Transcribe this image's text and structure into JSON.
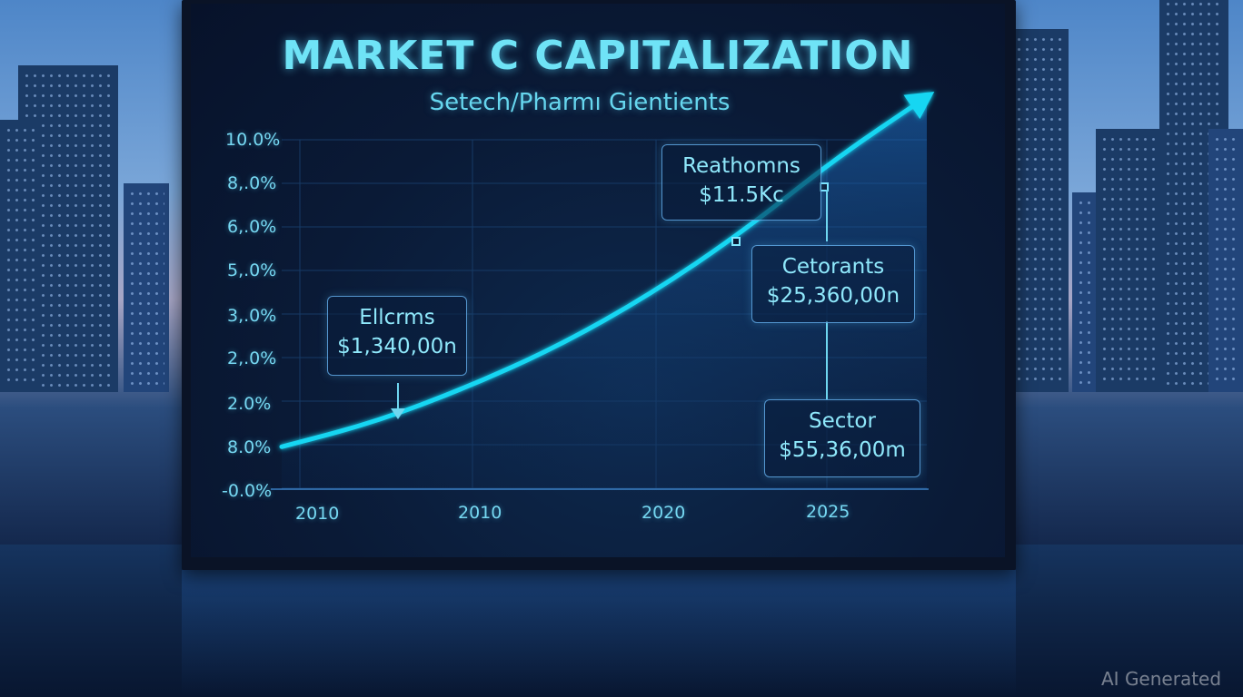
{
  "chart_data": {
    "type": "line",
    "title": "MARKET C CAPITALIZATION",
    "subtitle": "Setech/Pharmı Gientients",
    "y_tick_labels": [
      "10.0%",
      "8,.0%",
      "6,.0%",
      "5,.0%",
      "3,.0%",
      "2,.0%",
      "2.0%",
      "8.0%",
      "-0.0%"
    ],
    "x_tick_labels": [
      "2010",
      "2010",
      "2020",
      "2025"
    ],
    "series": [
      {
        "values": [
          0.7,
          1.4,
          2.4,
          3.6,
          5.1,
          6.9,
          9.0,
          10.8
        ]
      }
    ],
    "annotations": [
      {
        "label": "Ellcrms",
        "value": "$1,340,00n"
      },
      {
        "label": "Reathomns",
        "value": "$11.5Kc"
      },
      {
        "label": "Cetorants",
        "value": "$25,360,00n"
      },
      {
        "label": "Sector",
        "value": "$55,36,00m"
      }
    ],
    "grid": true,
    "line_color": "#19d6f2"
  },
  "watermark": "AI Generated"
}
